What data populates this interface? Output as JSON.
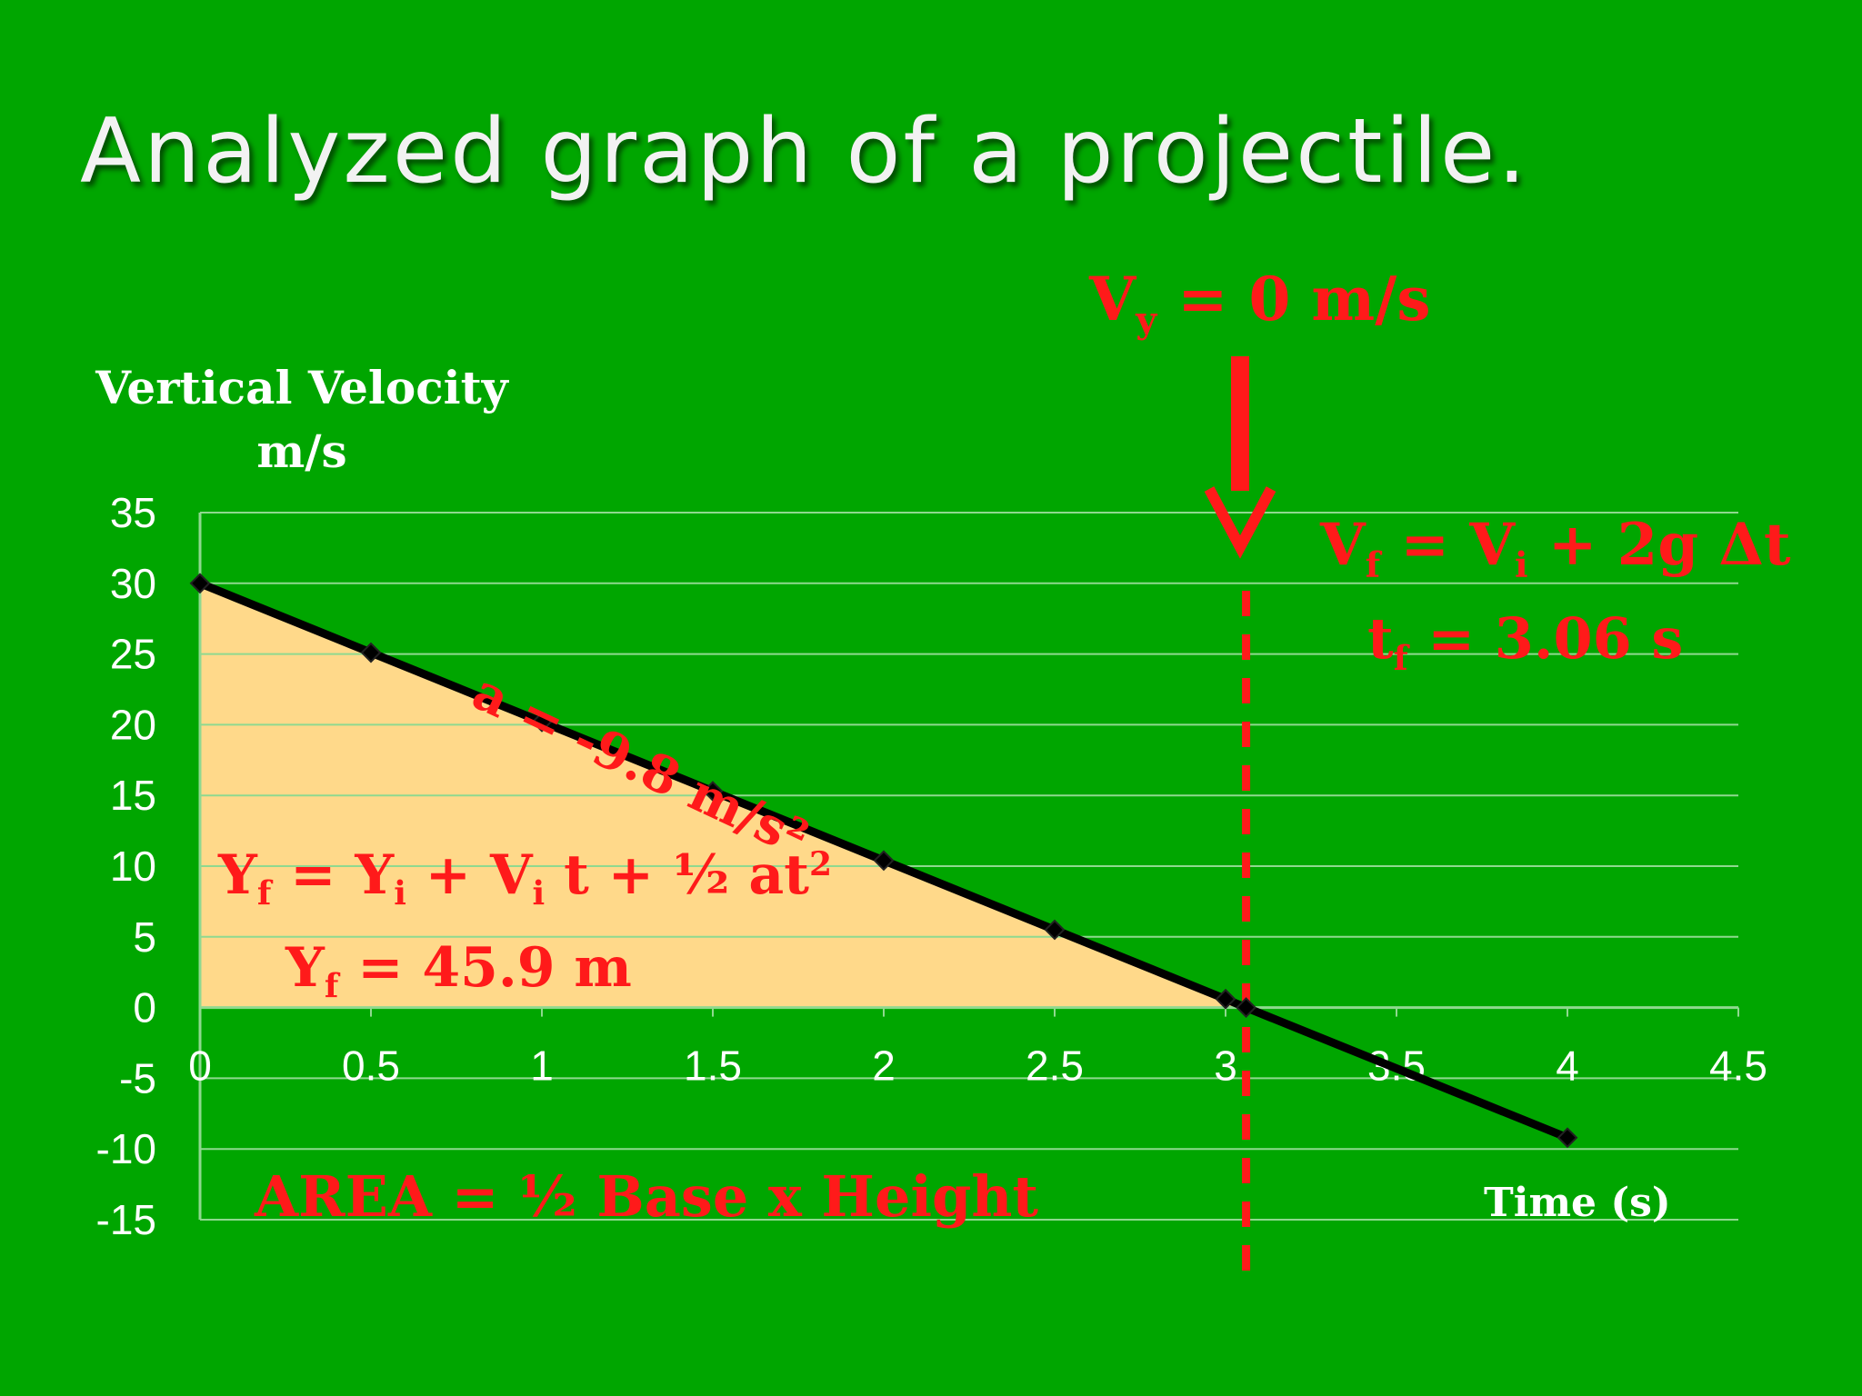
{
  "slide": {
    "title": "Analyzed graph of a projectile."
  },
  "chart_data": {
    "type": "line",
    "title": "Analyzed graph of a projectile.",
    "ylabel_line1": "Vertical Velocity",
    "ylabel_line2": "m/s",
    "xlabel": "Time (s)",
    "xlim": [
      0,
      4.5
    ],
    "ylim": [
      -15,
      35
    ],
    "x_ticks": [
      "0",
      "0.5",
      "1",
      "1.5",
      "2",
      "2.5",
      "3",
      "3.5",
      "4",
      "4.5"
    ],
    "y_ticks": [
      "35",
      "30",
      "25",
      "20",
      "15",
      "10",
      "5",
      "0",
      "-5",
      "-10",
      "-15"
    ],
    "grid": true,
    "series": [
      {
        "x": [
          0,
          0.5,
          1,
          1.5,
          2,
          2.5,
          3,
          3.06,
          4
        ],
        "y": [
          30,
          25.1,
          20.2,
          15.3,
          10.4,
          5.5,
          0.6,
          0,
          -9.2
        ]
      }
    ],
    "shaded_area": {
      "x_start": 0,
      "x_end": 3.06,
      "y_start": 30
    },
    "vertical_line_x": 3.06,
    "colors": {
      "background": "#00a600",
      "line": "#000000",
      "area_fill": "#ffd98a",
      "grid": "#8fd98f",
      "annotation": "#ff1a1a"
    }
  },
  "annotations": {
    "vy_zero": {
      "v": "V",
      "sub": "y",
      "rest": " = 0 m/s"
    },
    "vf_eq": {
      "v": "V",
      "sub1": "f",
      "mid": " = V",
      "sub2": "i",
      "rest": " + 2g Δt"
    },
    "tf": {
      "t": "t",
      "sub": "f",
      "rest": " = 3.06 s"
    },
    "accel": "a = -9.8 m/s²",
    "yf_eq": {
      "p1": "Y",
      "s1": "f",
      "p2": " = Y",
      "s2": "i",
      "p3": " + V",
      "s3": "i",
      "p4": " t + ½ at",
      "sup": "2"
    },
    "yf_val": {
      "p1": "Y",
      "s1": "f",
      "p2": " = 45.9 m"
    },
    "area": "AREA = ½ Base x Height"
  }
}
